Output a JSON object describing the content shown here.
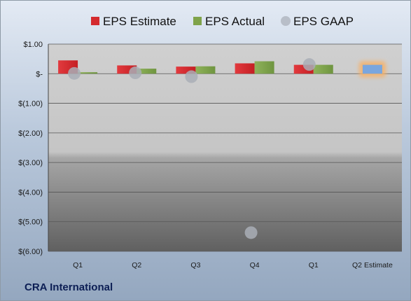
{
  "company_name": "CRA International",
  "chart_data": {
    "type": "bar",
    "categories": [
      "Q1",
      "Q2",
      "Q3",
      "Q4",
      "Q1",
      "Q2 Estimate"
    ],
    "series": [
      {
        "name": "EPS Estimate",
        "type": "bar",
        "color": "#d42a2e",
        "values": [
          0.45,
          0.28,
          0.24,
          0.35,
          0.3,
          null
        ]
      },
      {
        "name": "EPS Actual",
        "type": "bar",
        "color": "#7fa34a",
        "values": [
          0.05,
          0.17,
          0.25,
          0.42,
          0.3,
          null
        ]
      },
      {
        "name": "EPS GAAP",
        "type": "marker",
        "color": "#a9aeb6",
        "values": [
          0.01,
          0.03,
          -0.1,
          -5.37,
          0.31,
          null
        ]
      },
      {
        "name": "Q2 Estimate",
        "type": "bar",
        "color": "#7aa6de",
        "highlight": "#f6b26b",
        "values": [
          null,
          null,
          null,
          null,
          null,
          0.3
        ]
      }
    ],
    "legend": [
      "EPS Estimate",
      "EPS Actual",
      "EPS GAAP"
    ],
    "legend_position": "top",
    "y_ticks": [
      "$1.00",
      "$-",
      "$(1.00)",
      "$(2.00)",
      "$(3.00)",
      "$(4.00)",
      "$(5.00)",
      "$(6.00)"
    ],
    "ylim": [
      -6,
      1
    ],
    "grid": true
  }
}
